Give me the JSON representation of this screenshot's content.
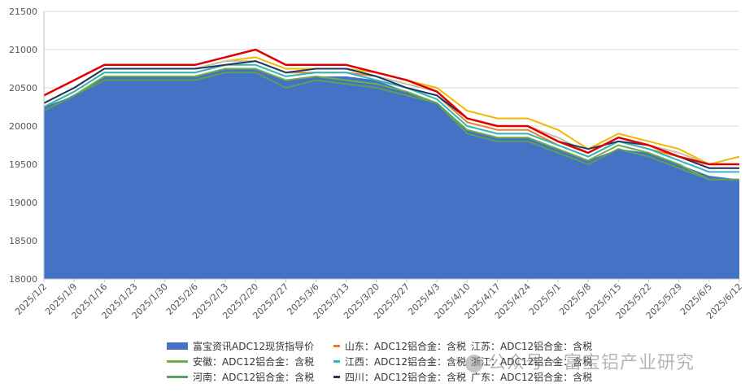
{
  "chart_data": {
    "type": "area",
    "title": "",
    "xlabel": "",
    "ylabel": "",
    "ylim": [
      18000,
      21500
    ],
    "yticks": [
      18000,
      18500,
      19000,
      19500,
      20000,
      20500,
      21000,
      21500
    ],
    "grid": true,
    "legend_position": "bottom",
    "x": [
      "2025/1/2",
      "2025/1/9",
      "2025/1/16",
      "2025/1/23",
      "2025/1/30",
      "2025/2/6",
      "2025/2/13",
      "2025/2/20",
      "2025/2/27",
      "2025/3/6",
      "2025/3/13",
      "2025/3/20",
      "2025/3/27",
      "2025/4/3",
      "2025/4/10",
      "2025/4/17",
      "2025/4/24",
      "2025/5/1",
      "2025/5/8",
      "2025/5/15",
      "2025/5/22",
      "2025/5/29",
      "2025/6/5",
      "2025/6/12"
    ],
    "series": [
      {
        "name": "富宝资讯ADC12现货指导价",
        "type": "area",
        "color": "#4472C4",
        "values": [
          20250,
          20400,
          20650,
          20650,
          20650,
          20650,
          20750,
          20750,
          20600,
          20650,
          20650,
          20600,
          20450,
          20300,
          19950,
          19850,
          19850,
          19700,
          19550,
          19700,
          19650,
          19500,
          19350,
          19300
        ]
      },
      {
        "name": "山东：ADC12铝合金：含税",
        "type": "line",
        "color": "#ED7D31",
        "values": [
          20250,
          20450,
          20700,
          20700,
          20700,
          20700,
          20800,
          20850,
          20700,
          20700,
          20700,
          20650,
          20500,
          20400,
          20050,
          19950,
          19950,
          19750,
          19600,
          19800,
          19700,
          19600,
          19450,
          19450
        ]
      },
      {
        "name": "江苏：ADC12铝合金：含税",
        "type": "line",
        "color": "#F0B800",
        "values": [
          20300,
          20500,
          20750,
          20750,
          20750,
          20750,
          20850,
          20900,
          20750,
          20750,
          20750,
          20700,
          20600,
          20500,
          20200,
          20100,
          20100,
          19950,
          19700,
          19900,
          19800,
          19700,
          19500,
          19600
        ]
      },
      {
        "name": "安徽：ADC12铝合金：含税",
        "type": "line",
        "color": "#70AD47",
        "values": [
          20200,
          20400,
          20650,
          20650,
          20650,
          20650,
          20750,
          20750,
          20600,
          20650,
          20600,
          20550,
          20450,
          20300,
          19950,
          19850,
          19850,
          19700,
          19550,
          19750,
          19650,
          19500,
          19300,
          19300
        ]
      },
      {
        "name": "江西：ADC12铝合金：含税",
        "type": "line",
        "color": "#2EB8B8",
        "values": [
          20250,
          20450,
          20700,
          20700,
          20700,
          20700,
          20800,
          20800,
          20650,
          20700,
          20700,
          20600,
          20500,
          20350,
          20000,
          19900,
          19900,
          19750,
          19600,
          19800,
          19700,
          19550,
          19400,
          19400
        ]
      },
      {
        "name": "浙江：ADC12铝合金：含税",
        "type": "line",
        "color": "#C9C0A5",
        "values": [
          20300,
          20500,
          20750,
          20750,
          20750,
          20750,
          20850,
          20850,
          20700,
          20750,
          20750,
          20650,
          20550,
          20450,
          20100,
          20000,
          20000,
          19850,
          19650,
          19850,
          19750,
          19650,
          19500,
          19500
        ]
      },
      {
        "name": "河南：ADC12铝合金：含税",
        "type": "line",
        "color": "#5E9E5E",
        "values": [
          20200,
          20400,
          20600,
          20600,
          20600,
          20600,
          20700,
          20700,
          20500,
          20600,
          20550,
          20500,
          20400,
          20300,
          19900,
          19800,
          19800,
          19650,
          19500,
          19700,
          19600,
          19450,
          19300,
          19300
        ]
      },
      {
        "name": "四川：ADC12铝合金：含税",
        "type": "line",
        "color": "#1F3864",
        "values": [
          20300,
          20500,
          20750,
          20750,
          20750,
          20750,
          20800,
          20850,
          20700,
          20750,
          20750,
          20650,
          20500,
          20400,
          20100,
          20000,
          20000,
          19800,
          19700,
          19800,
          19750,
          19600,
          19450,
          19450
        ]
      },
      {
        "name": "广东：ADC12铝合金：含税",
        "type": "line",
        "color": "#E00000",
        "values": [
          20400,
          20600,
          20800,
          20800,
          20800,
          20800,
          20900,
          21000,
          20800,
          20800,
          20800,
          20700,
          20600,
          20450,
          20100,
          20000,
          20000,
          19800,
          19650,
          19850,
          19750,
          19600,
          19500,
          19500
        ]
      }
    ]
  },
  "legend": [
    [
      "富宝资讯ADC12现货指导价",
      "山东：ADC12铝合金：含税",
      "江苏：ADC12铝合金：含税"
    ],
    [
      "安徽：ADC12铝合金：含税",
      "江西：ADC12铝合金：含税",
      "浙江：ADC12铝合金：含税"
    ],
    [
      "河南：ADC12铝合金：含税",
      "四川：ADC12铝合金：含税",
      "广东：ADC12铝合金：含税"
    ]
  ],
  "watermark": "公众号 · 富宝铝产业研究"
}
